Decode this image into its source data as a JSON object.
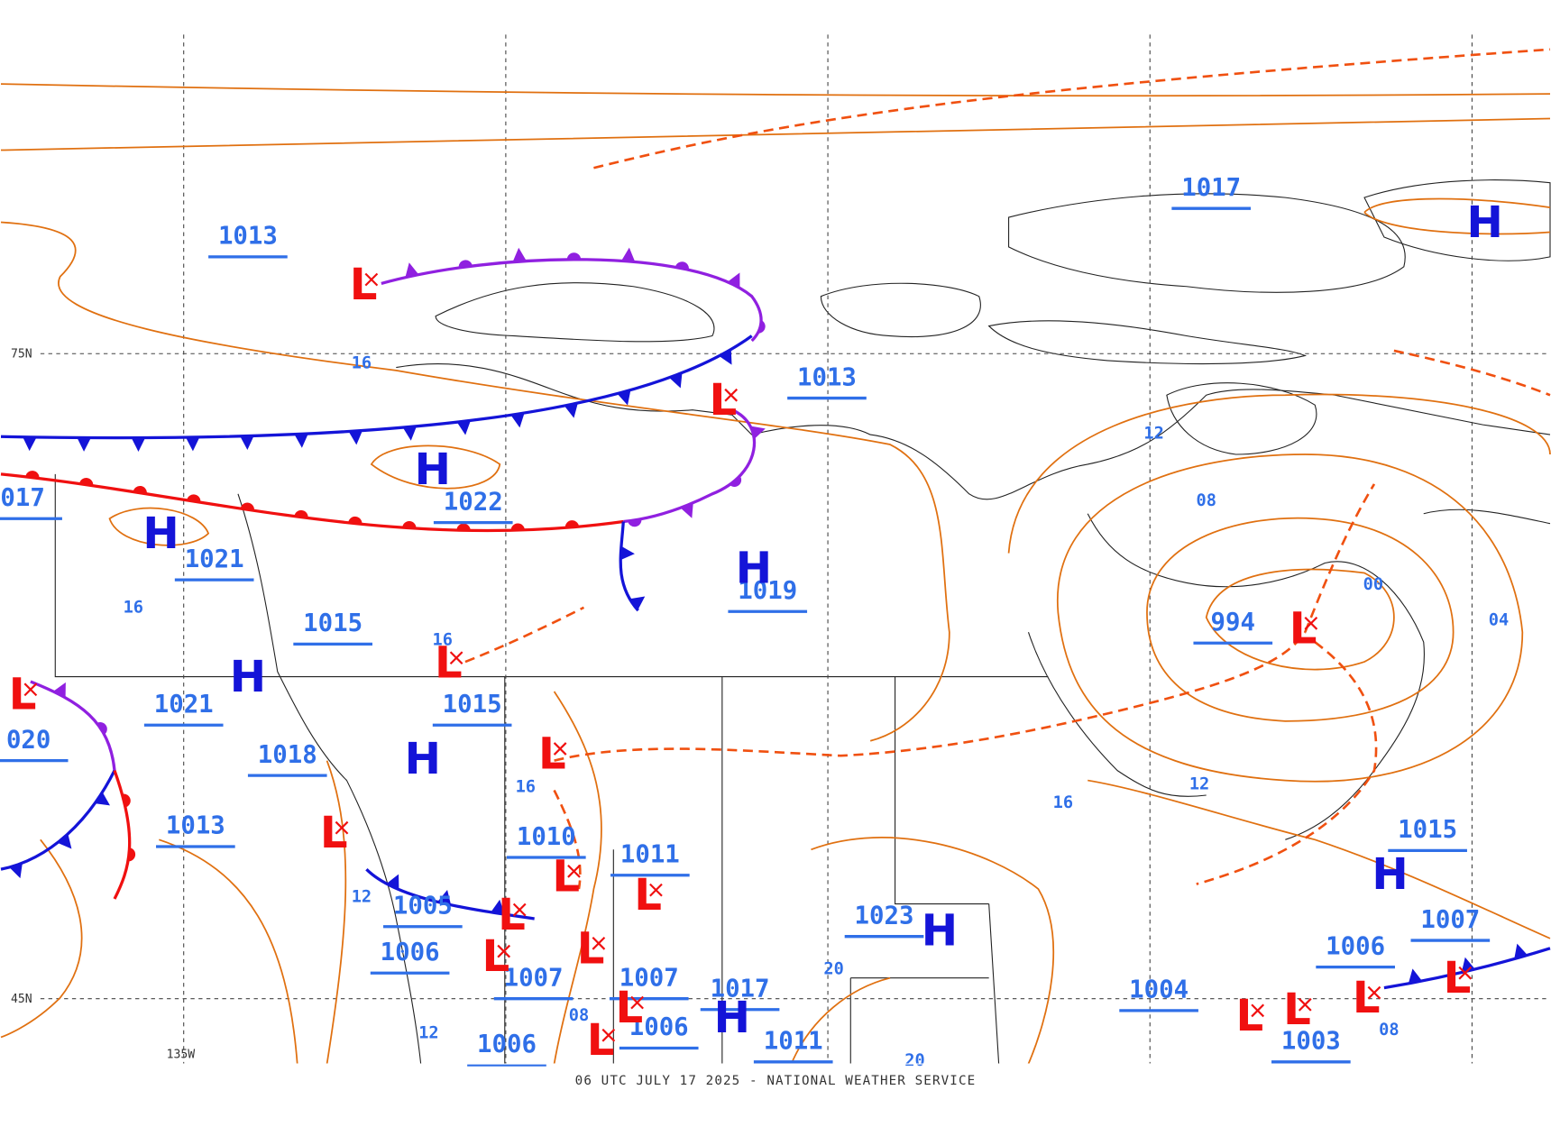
{
  "footer": "06 UTC JULY 17 2025 - NATIONAL WEATHER SERVICE",
  "grid_labels": [
    "75N",
    "45N",
    "135W"
  ],
  "pressure_labels": [
    "1013",
    "1017",
    "1013",
    "1022",
    "1021",
    "1019",
    "1015",
    "994",
    "1021",
    "1015",
    "1018",
    "020",
    "017",
    "1013",
    "1010",
    "1011",
    "1015",
    "1005",
    "1023",
    "1006",
    "1006",
    "1007",
    "1007",
    "1007",
    "1017",
    "1004",
    "1006",
    "1006",
    "1011",
    "1003"
  ],
  "highs": [
    "H",
    "H",
    "H",
    "H",
    "H",
    "H",
    "H",
    "H",
    "H"
  ],
  "lows": [
    "L",
    "L",
    "L",
    "L",
    "L",
    "L",
    "L",
    "L",
    "L",
    "L",
    "L",
    "L",
    "L",
    "L",
    "L",
    "L",
    "L",
    "L"
  ],
  "isobar_labels": [
    "16",
    "12",
    "08",
    "16",
    "16",
    "00",
    "04",
    "16",
    "16",
    "12",
    "12",
    "20",
    "08",
    "12",
    "20",
    "08"
  ]
}
